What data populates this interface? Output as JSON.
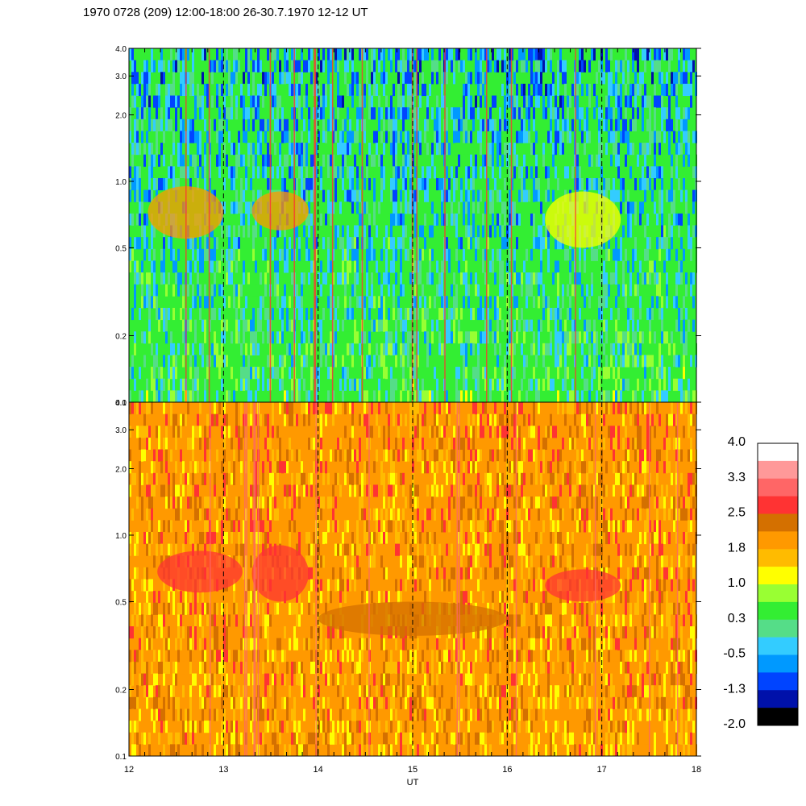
{
  "chart_data": {
    "type": "heatmap",
    "title": "1970 0728 (209) 12:00-18:00 26-30.7.1970  12-12 UT",
    "xlabel": "UT",
    "x_ticks": [
      "12",
      "13",
      "14",
      "15",
      "16",
      "17",
      "18"
    ],
    "xlim": [
      12,
      18
    ],
    "y_scale": "log",
    "ylim": [
      0.1,
      4.0
    ],
    "y_ticks": [
      "0.1",
      "0.2",
      "0.5",
      "1.0",
      "2.0",
      "3.0",
      "4.0"
    ],
    "y_tick_values": [
      0.1,
      0.2,
      0.5,
      1.0,
      2.0,
      3.0,
      4.0
    ],
    "dashed_lines_at": [
      13,
      14,
      15,
      16,
      17
    ],
    "panels": [
      {
        "name": "upper",
        "dominant_level": 0.3,
        "features": [
          {
            "x": [
              12.2,
              13.0
            ],
            "y": [
              0.55,
              0.95
            ],
            "level": 1.8
          },
          {
            "x": [
              13.3,
              13.9
            ],
            "y": [
              0.6,
              0.9
            ],
            "level": 1.8
          },
          {
            "x": [
              16.4,
              17.2
            ],
            "y": [
              0.5,
              0.9
            ],
            "level": 1.0
          }
        ]
      },
      {
        "name": "lower",
        "dominant_level": 1.8,
        "features": [
          {
            "x": [
              12.3,
              13.2
            ],
            "y": [
              0.55,
              0.85
            ],
            "level": 2.5
          },
          {
            "x": [
              13.3,
              13.9
            ],
            "y": [
              0.5,
              0.9
            ],
            "level": 2.5
          },
          {
            "x": [
              16.4,
              17.2
            ],
            "y": [
              0.5,
              0.7
            ],
            "level": 2.5
          },
          {
            "x": [
              14.0,
              16.0
            ],
            "y": [
              0.35,
              0.5
            ],
            "level": 2.2
          }
        ]
      }
    ],
    "colorbar": {
      "labels": [
        "4.0",
        "3.3",
        "2.5",
        "1.8",
        "1.0",
        "0.3",
        "-0.5",
        "-1.3",
        "-2.0"
      ],
      "colors": [
        "#ffffff",
        "#ff9999",
        "#ff6666",
        "#ff3333",
        "#d47000",
        "#ff9900",
        "#ffbb00",
        "#ffff00",
        "#99ff33",
        "#33ee33",
        "#55dd88",
        "#33ccff",
        "#0099ff",
        "#0044ff",
        "#0011aa",
        "#000000"
      ]
    }
  }
}
